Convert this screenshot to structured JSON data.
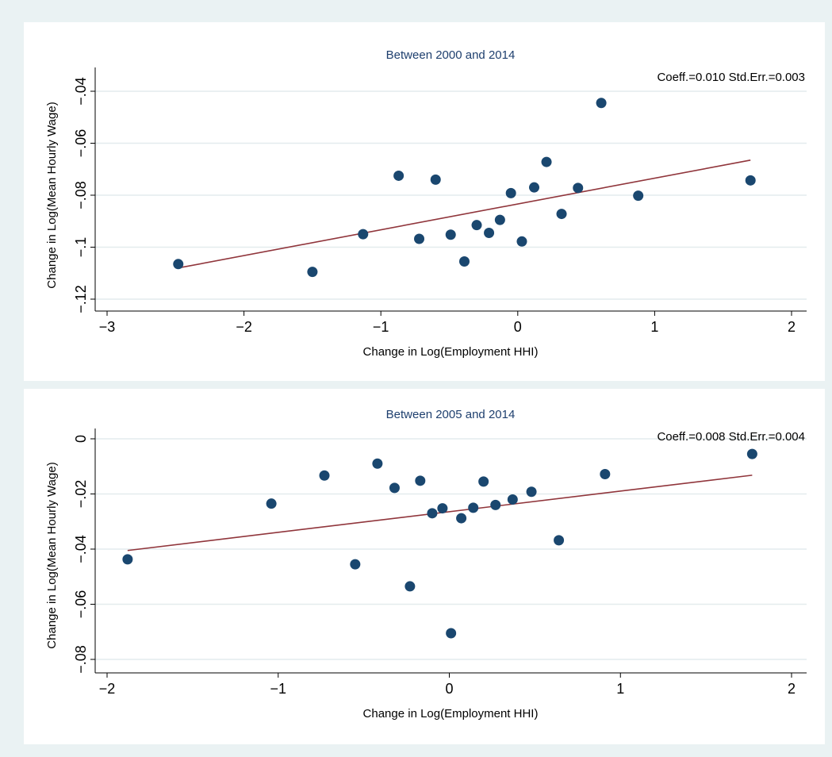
{
  "chart_data": [
    {
      "type": "scatter",
      "title": "Between 2000 and 2014",
      "xlabel": "Change in Log(Employment HHI)",
      "ylabel": "Change in Log(Mean Hourly Wage)",
      "xlim": [
        -3,
        2
      ],
      "ylim": [
        -0.12,
        -0.04
      ],
      "xticks": [
        -3,
        -2,
        -1,
        0,
        1,
        2
      ],
      "xtick_labels": [
        "−3",
        "−2",
        "−1",
        "0",
        "1",
        "2"
      ],
      "yticks": [
        -0.12,
        -0.1,
        -0.08,
        -0.06,
        -0.04
      ],
      "ytick_labels": [
        "−.12",
        "−.1",
        "−.08",
        "−.06",
        "−.04"
      ],
      "grid": true,
      "annotation": "Coeff.=0.010  Std.Err.=0.003",
      "points": [
        {
          "x": -2.48,
          "y": -0.1065
        },
        {
          "x": -1.5,
          "y": -0.1095
        },
        {
          "x": -1.13,
          "y": -0.095
        },
        {
          "x": -0.87,
          "y": -0.0725
        },
        {
          "x": -0.72,
          "y": -0.0968
        },
        {
          "x": -0.6,
          "y": -0.074
        },
        {
          "x": -0.49,
          "y": -0.0952
        },
        {
          "x": -0.39,
          "y": -0.1055
        },
        {
          "x": -0.3,
          "y": -0.0915
        },
        {
          "x": -0.21,
          "y": -0.0945
        },
        {
          "x": -0.13,
          "y": -0.0895
        },
        {
          "x": -0.05,
          "y": -0.0792
        },
        {
          "x": 0.03,
          "y": -0.0978
        },
        {
          "x": 0.12,
          "y": -0.077
        },
        {
          "x": 0.21,
          "y": -0.0672
        },
        {
          "x": 0.32,
          "y": -0.0872
        },
        {
          "x": 0.44,
          "y": -0.0772
        },
        {
          "x": 0.61,
          "y": -0.0445
        },
        {
          "x": 0.88,
          "y": -0.0802
        },
        {
          "x": 1.7,
          "y": -0.0743
        }
      ],
      "fit_line": {
        "x": [
          -2.48,
          1.7
        ],
        "y": [
          -0.108,
          -0.0665
        ]
      },
      "colors": {
        "marker": "#1a476f",
        "fit": "#90353b"
      }
    },
    {
      "type": "scatter",
      "title": "Between 2005 and 2014",
      "xlabel": "Change in Log(Employment HHI)",
      "ylabel": "Change in Log(Mean Hourly Wage)",
      "xlim": [
        -2,
        2
      ],
      "ylim": [
        -0.08,
        0
      ],
      "xticks": [
        -2,
        -1,
        0,
        1,
        2
      ],
      "xtick_labels": [
        "−2",
        "−1",
        "0",
        "1",
        "2"
      ],
      "yticks": [
        -0.08,
        -0.06,
        -0.04,
        -0.02,
        0
      ],
      "ytick_labels": [
        "−.08",
        "−.06",
        "−.04",
        "−.02",
        "0"
      ],
      "grid": true,
      "annotation": "Coeff.=0.008 Std.Err.=0.004",
      "points": [
        {
          "x": -1.88,
          "y": -0.0437
        },
        {
          "x": -1.04,
          "y": -0.0235
        },
        {
          "x": -0.73,
          "y": -0.0133
        },
        {
          "x": -0.55,
          "y": -0.0455
        },
        {
          "x": -0.42,
          "y": -0.009
        },
        {
          "x": -0.32,
          "y": -0.0178
        },
        {
          "x": -0.23,
          "y": -0.0535
        },
        {
          "x": -0.17,
          "y": -0.0152
        },
        {
          "x": -0.1,
          "y": -0.027
        },
        {
          "x": -0.04,
          "y": -0.0252
        },
        {
          "x": 0.01,
          "y": -0.0705
        },
        {
          "x": 0.07,
          "y": -0.0288
        },
        {
          "x": 0.14,
          "y": -0.025
        },
        {
          "x": 0.2,
          "y": -0.0155
        },
        {
          "x": 0.27,
          "y": -0.024
        },
        {
          "x": 0.37,
          "y": -0.022
        },
        {
          "x": 0.48,
          "y": -0.0192
        },
        {
          "x": 0.64,
          "y": -0.0368
        },
        {
          "x": 0.91,
          "y": -0.0128
        },
        {
          "x": 1.77,
          "y": -0.0055
        }
      ],
      "fit_line": {
        "x": [
          -1.88,
          1.77
        ],
        "y": [
          -0.0405,
          -0.0132
        ]
      },
      "colors": {
        "marker": "#1a476f",
        "fit": "#90353b"
      }
    }
  ]
}
